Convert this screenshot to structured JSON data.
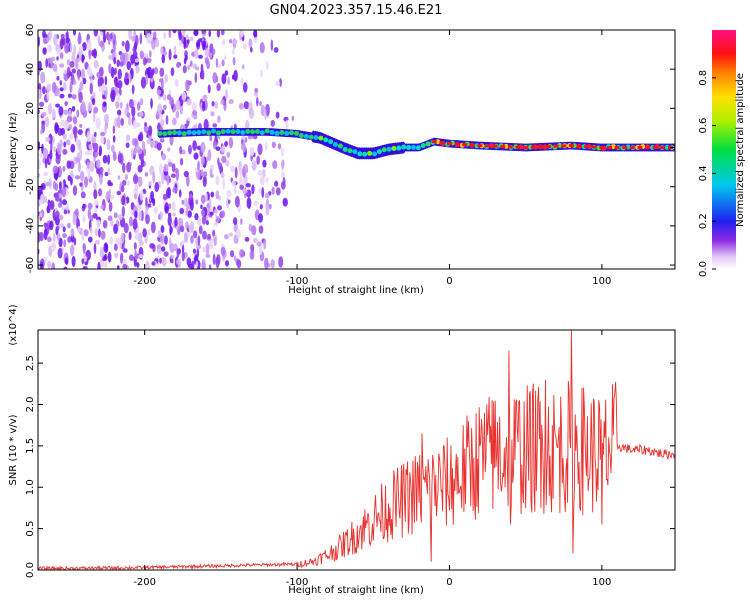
{
  "title": "GN04.2023.357.15.46.E21",
  "chart_data": [
    {
      "type": "heatmap",
      "xlabel": "Height of straight line (km)",
      "ylabel": "Frequency (Hz)",
      "xlim": [
        -270,
        148
      ],
      "ylim": [
        -62,
        60
      ],
      "x_ticks": [
        -200,
        -100,
        0,
        100
      ],
      "x_tick_labels": [
        "-200",
        "-100",
        "0",
        "100"
      ],
      "y_ticks": [
        -60,
        -40,
        -20,
        0,
        20,
        40,
        60
      ],
      "y_tick_labels": [
        "-60",
        "-40",
        "-20",
        "0",
        "20",
        "40",
        "60"
      ],
      "colorbar": {
        "label": "Normalized spectral amplitude",
        "range": [
          0,
          1
        ],
        "ticks": [
          0.0,
          0.2,
          0.4,
          0.6,
          0.8
        ],
        "tick_labels": [
          "0.0",
          "0.2",
          "0.4",
          "0.6",
          "0.8"
        ],
        "colormap": "rainbow (white-violet-blue-cyan-green-yellow-red-magenta)"
      },
      "noise_region_x_range": [
        -270,
        -100
      ],
      "ridge": [
        {
          "x": -190,
          "y": 7
        },
        {
          "x": -160,
          "y": 8
        },
        {
          "x": -140,
          "y": 8
        },
        {
          "x": -120,
          "y": 8
        },
        {
          "x": -100,
          "y": 7
        },
        {
          "x": -85,
          "y": 5
        },
        {
          "x": -70,
          "y": 0
        },
        {
          "x": -60,
          "y": -3
        },
        {
          "x": -50,
          "y": -3
        },
        {
          "x": -40,
          "y": -1
        },
        {
          "x": -30,
          "y": 0
        },
        {
          "x": -20,
          "y": 0
        },
        {
          "x": -10,
          "y": 3
        },
        {
          "x": 0,
          "y": 2
        },
        {
          "x": 20,
          "y": 1
        },
        {
          "x": 50,
          "y": 0
        },
        {
          "x": 80,
          "y": 1
        },
        {
          "x": 100,
          "y": 0
        },
        {
          "x": 148,
          "y": 0
        }
      ]
    },
    {
      "type": "line",
      "xlabel": "Height of straight line (km)",
      "ylabel": "SNR (10 * v/v)",
      "y_multiplier": "(x10^4)",
      "xlim": [
        -270,
        148
      ],
      "ylim": [
        0,
        2.9
      ],
      "x_ticks": [
        -200,
        -100,
        0,
        100
      ],
      "x_tick_labels": [
        "-200",
        "-100",
        "0",
        "100"
      ],
      "y_ticks": [
        0.0,
        0.5,
        1.0,
        1.5,
        2.0,
        2.5
      ],
      "y_tick_labels": [
        "0.0",
        "0.5",
        "1.0",
        "1.5",
        "2.0",
        "2.5"
      ],
      "series": [
        {
          "color": "#e8302c",
          "x": [
            -270,
            -250,
            -200,
            -150,
            -130,
            -100,
            -90,
            -80,
            -70,
            -60,
            -50,
            -40,
            -30,
            -20,
            -10,
            0,
            10,
            20,
            30,
            40,
            50,
            60,
            70,
            80,
            90,
            100,
            110,
            120,
            130,
            140,
            148
          ],
          "y": [
            0.02,
            0.02,
            0.03,
            0.05,
            0.06,
            0.07,
            0.1,
            0.18,
            0.3,
            0.45,
            0.6,
            0.75,
            0.85,
            0.95,
            1.0,
            1.05,
            1.2,
            1.35,
            1.4,
            1.45,
            1.45,
            1.5,
            1.45,
            1.5,
            1.45,
            1.4,
            1.5,
            1.45,
            1.45,
            1.4,
            1.4
          ]
        }
      ],
      "spikes": [
        {
          "x": 39,
          "y": 2.65
        },
        {
          "x": 40,
          "y": 0.55
        },
        {
          "x": 80,
          "y": 2.9
        },
        {
          "x": 81,
          "y": 0.2
        },
        {
          "x": 28,
          "y": 2.05
        },
        {
          "x": 63,
          "y": 2.3
        },
        {
          "x": 98,
          "y": 2.05
        },
        {
          "x": -18,
          "y": 1.65
        },
        {
          "x": -12,
          "y": 0.1
        },
        {
          "x": 100,
          "y": 0.55
        },
        {
          "x": 60,
          "y": 0.75
        }
      ]
    }
  ]
}
